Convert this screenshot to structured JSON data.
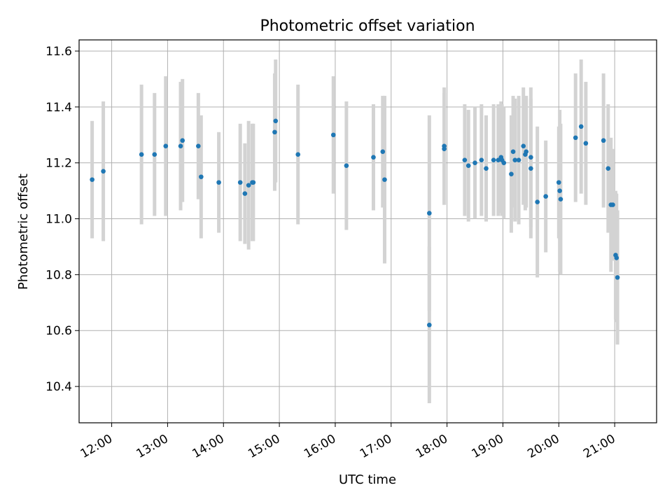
{
  "chart_data": {
    "type": "scatter",
    "title": "Photometric offset variation",
    "xlabel": "UTC time",
    "ylabel": "Photometric offset",
    "xlim": [
      "11:25",
      "21:45"
    ],
    "ylim": [
      10.27,
      11.64
    ],
    "grid": true,
    "x_ticks": [
      "12:00",
      "13:00",
      "14:00",
      "15:00",
      "16:00",
      "17:00",
      "18:00",
      "19:00",
      "20:00",
      "21:00"
    ],
    "y_ticks": [
      10.4,
      10.6,
      10.8,
      11.0,
      11.2,
      11.4,
      11.6
    ],
    "y_tick_labels": [
      "10.4",
      "10.6",
      "10.8",
      "11.0",
      "11.2",
      "11.4",
      "11.6"
    ],
    "series": [
      {
        "color": "#1f77b4",
        "errorbar_color": "#d3d3d3",
        "x": [
          "11:39",
          "11:51",
          "12:32",
          "12:46",
          "12:58",
          "13:14",
          "13:16",
          "13:33",
          "13:36",
          "13:55",
          "14:18",
          "14:23",
          "14:27",
          "14:31",
          "14:32",
          "14:55",
          "14:56",
          "15:20",
          "15:58",
          "16:12",
          "16:41",
          "16:51",
          "16:53",
          "17:41",
          "17:41",
          "17:57",
          "17:57",
          "18:19",
          "18:23",
          "18:30",
          "18:37",
          "18:42",
          "18:50",
          "18:55",
          "18:58",
          "18:59",
          "19:01",
          "19:09",
          "19:11",
          "19:13",
          "19:17",
          "19:22",
          "19:24",
          "19:25",
          "19:30",
          "19:30",
          "19:37",
          "19:46",
          "20:00",
          "20:01",
          "20:02",
          "20:18",
          "20:24",
          "20:29",
          "20:48",
          "20:53",
          "20:56",
          "20:58",
          "21:01",
          "21:02",
          "21:03"
        ],
        "y": [
          11.14,
          11.17,
          11.23,
          11.23,
          11.26,
          11.26,
          11.28,
          11.26,
          11.15,
          11.13,
          11.13,
          11.09,
          11.12,
          11.13,
          11.13,
          11.31,
          11.35,
          11.23,
          11.3,
          11.19,
          11.22,
          11.24,
          11.14,
          11.02,
          10.62,
          11.26,
          11.25,
          11.21,
          11.19,
          11.2,
          11.21,
          11.18,
          11.21,
          11.21,
          11.22,
          11.21,
          11.2,
          11.16,
          11.24,
          11.21,
          11.21,
          11.26,
          11.23,
          11.24,
          11.22,
          11.18,
          11.06,
          11.08,
          11.13,
          11.1,
          11.07,
          11.29,
          11.33,
          11.27,
          11.28,
          11.18,
          11.05,
          11.05,
          10.87,
          10.86,
          10.79
        ],
        "yerr": [
          0.21,
          0.25,
          0.25,
          0.22,
          0.25,
          0.23,
          0.22,
          0.19,
          0.22,
          0.18,
          0.21,
          0.18,
          0.23,
          0.21,
          0.21,
          0.21,
          0.22,
          0.25,
          0.21,
          0.23,
          0.19,
          0.2,
          0.3,
          0.35,
          0.28,
          0.21,
          0.2,
          0.2,
          0.2,
          0.2,
          0.2,
          0.19,
          0.2,
          0.2,
          0.2,
          0.2,
          0.2,
          0.21,
          0.2,
          0.22,
          0.23,
          0.21,
          0.2,
          0.2,
          0.25,
          0.25,
          0.27,
          0.2,
          0.2,
          0.29,
          0.27,
          0.23,
          0.24,
          0.22,
          0.24,
          0.23,
          0.24,
          0.2,
          0.23,
          0.23,
          0.24
        ]
      }
    ]
  }
}
